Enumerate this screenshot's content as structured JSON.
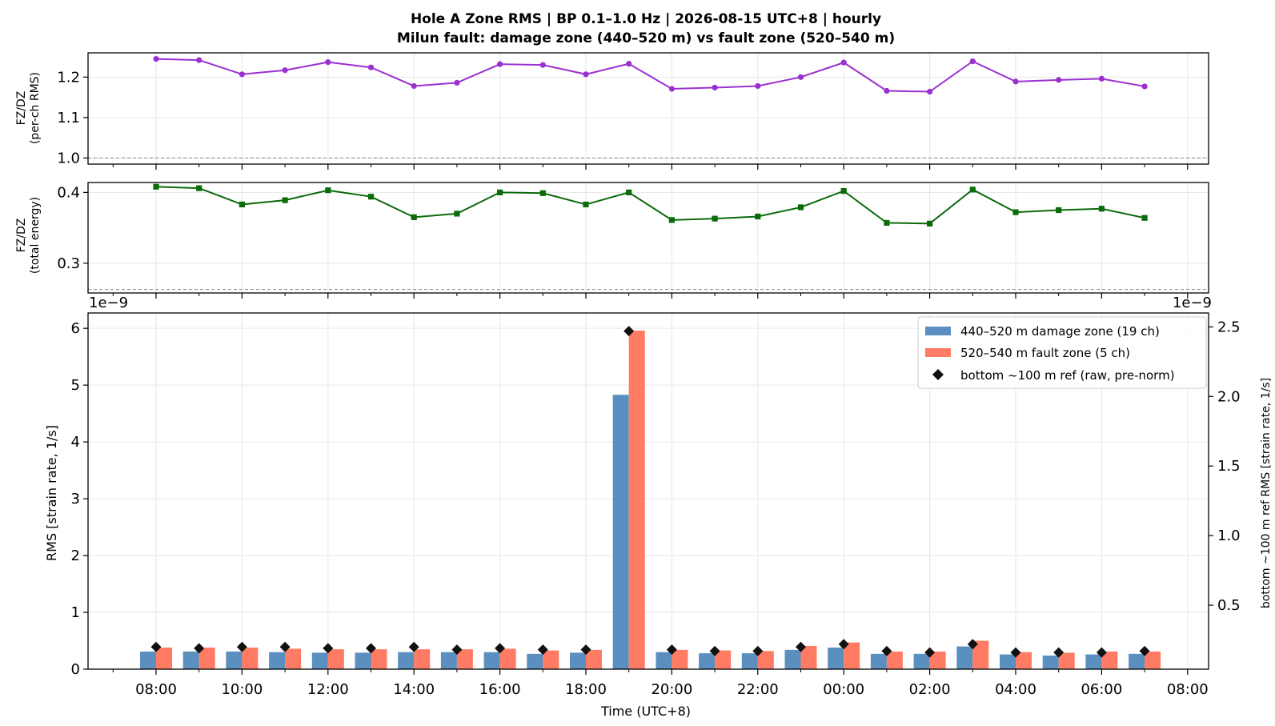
{
  "title_line1": "Hole A Zone RMS  |  BP 0.1–1.0 Hz  |  2026-08-15 UTC+8  |  hourly",
  "title_line2": "Milun fault: damage zone (440–520 m) vs fault zone (520–540 m)",
  "colors": {
    "damage": "#5b8fbf",
    "fault": "#ff7b63",
    "ref": "#111111",
    "ratio_rms": "#9b30d0",
    "ratio_energy": "#0b6b0b",
    "grid": "#e6e6e6"
  },
  "x_tick_labels": [
    "08:00",
    "10:00",
    "12:00",
    "14:00",
    "16:00",
    "18:00",
    "20:00",
    "22:00",
    "00:00",
    "02:00",
    "04:00",
    "06:00",
    "08:00"
  ],
  "xlabel": "Time (UTC+8)",
  "chart_data": [
    {
      "type": "line",
      "panel": "top",
      "ylabel": [
        "FZ/DZ",
        "(per-ch RMS)"
      ],
      "ylim": [
        0.985,
        1.26
      ],
      "yticks": [
        1.0,
        1.1,
        1.2
      ],
      "ytick_labels": [
        "1.0",
        "1.1",
        "1.2"
      ],
      "reference_line": 1.0,
      "series": [
        {
          "values": [
            1.245,
            1.242,
            1.207,
            1.217,
            1.237,
            1.224,
            1.178,
            1.186,
            1.232,
            1.23,
            1.207,
            1.233,
            1.171,
            1.174,
            1.178,
            1.2,
            1.236,
            1.166,
            1.164,
            1.239,
            1.189,
            1.193,
            1.196,
            1.177
          ]
        }
      ]
    },
    {
      "type": "line",
      "panel": "middle",
      "ylabel": [
        "FZ/DZ",
        "(total energy)"
      ],
      "ylim": [
        0.258,
        0.414
      ],
      "yticks": [
        0.3,
        0.4
      ],
      "ytick_labels": [
        "0.3",
        "0.4"
      ],
      "reference_line": 0.263,
      "offset_left": "1e−9",
      "offset_right": "1e−9",
      "series": [
        {
          "values": [
            0.408,
            0.406,
            0.383,
            0.389,
            0.403,
            0.394,
            0.365,
            0.37,
            0.4,
            0.399,
            0.383,
            0.4,
            0.361,
            0.363,
            0.366,
            0.379,
            0.402,
            0.357,
            0.356,
            0.404,
            0.372,
            0.375,
            0.377,
            0.364
          ]
        }
      ]
    },
    {
      "type": "bar",
      "panel": "bottom",
      "ylabel": "RMS  [strain rate, 1/s]",
      "ylabel_right": "bottom ~100 m ref RMS  [strain rate, 1/s]",
      "ylim": [
        0,
        6.27
      ],
      "yticks": [
        0,
        1,
        2,
        3,
        4,
        5,
        6
      ],
      "ytick_labels": [
        "0",
        "1",
        "2",
        "3",
        "4",
        "5",
        "6"
      ],
      "ylim_right": [
        0.04,
        2.6
      ],
      "yticks_right": [
        0.5,
        1.0,
        1.5,
        2.0,
        2.5
      ],
      "ytick_labels_right": [
        "0.5",
        "1.0",
        "1.5",
        "2.0",
        "2.5"
      ],
      "legend": "top-right",
      "series": [
        {
          "name": "440–520 m  damage zone (19 ch)",
          "values": [
            0.31,
            0.31,
            0.31,
            0.3,
            0.29,
            0.29,
            0.3,
            0.3,
            0.3,
            0.27,
            0.29,
            4.83,
            0.3,
            0.28,
            0.28,
            0.34,
            0.38,
            0.27,
            0.27,
            0.4,
            0.26,
            0.24,
            0.26,
            0.27
          ]
        },
        {
          "name": "520–540 m  fault zone (5 ch)",
          "values": [
            0.38,
            0.38,
            0.38,
            0.36,
            0.35,
            0.35,
            0.35,
            0.35,
            0.36,
            0.33,
            0.34,
            5.96,
            0.34,
            0.33,
            0.32,
            0.41,
            0.47,
            0.31,
            0.31,
            0.5,
            0.3,
            0.29,
            0.31,
            0.31
          ]
        },
        {
          "name": "bottom ~100 m ref (raw, pre-norm)",
          "axis": "right",
          "values": [
            0.2,
            0.19,
            0.2,
            0.2,
            0.19,
            0.19,
            0.2,
            0.18,
            0.19,
            0.18,
            0.18,
            2.47,
            0.18,
            0.17,
            0.17,
            0.2,
            0.22,
            0.17,
            0.16,
            0.22,
            0.16,
            0.16,
            0.16,
            0.17
          ]
        }
      ]
    }
  ]
}
